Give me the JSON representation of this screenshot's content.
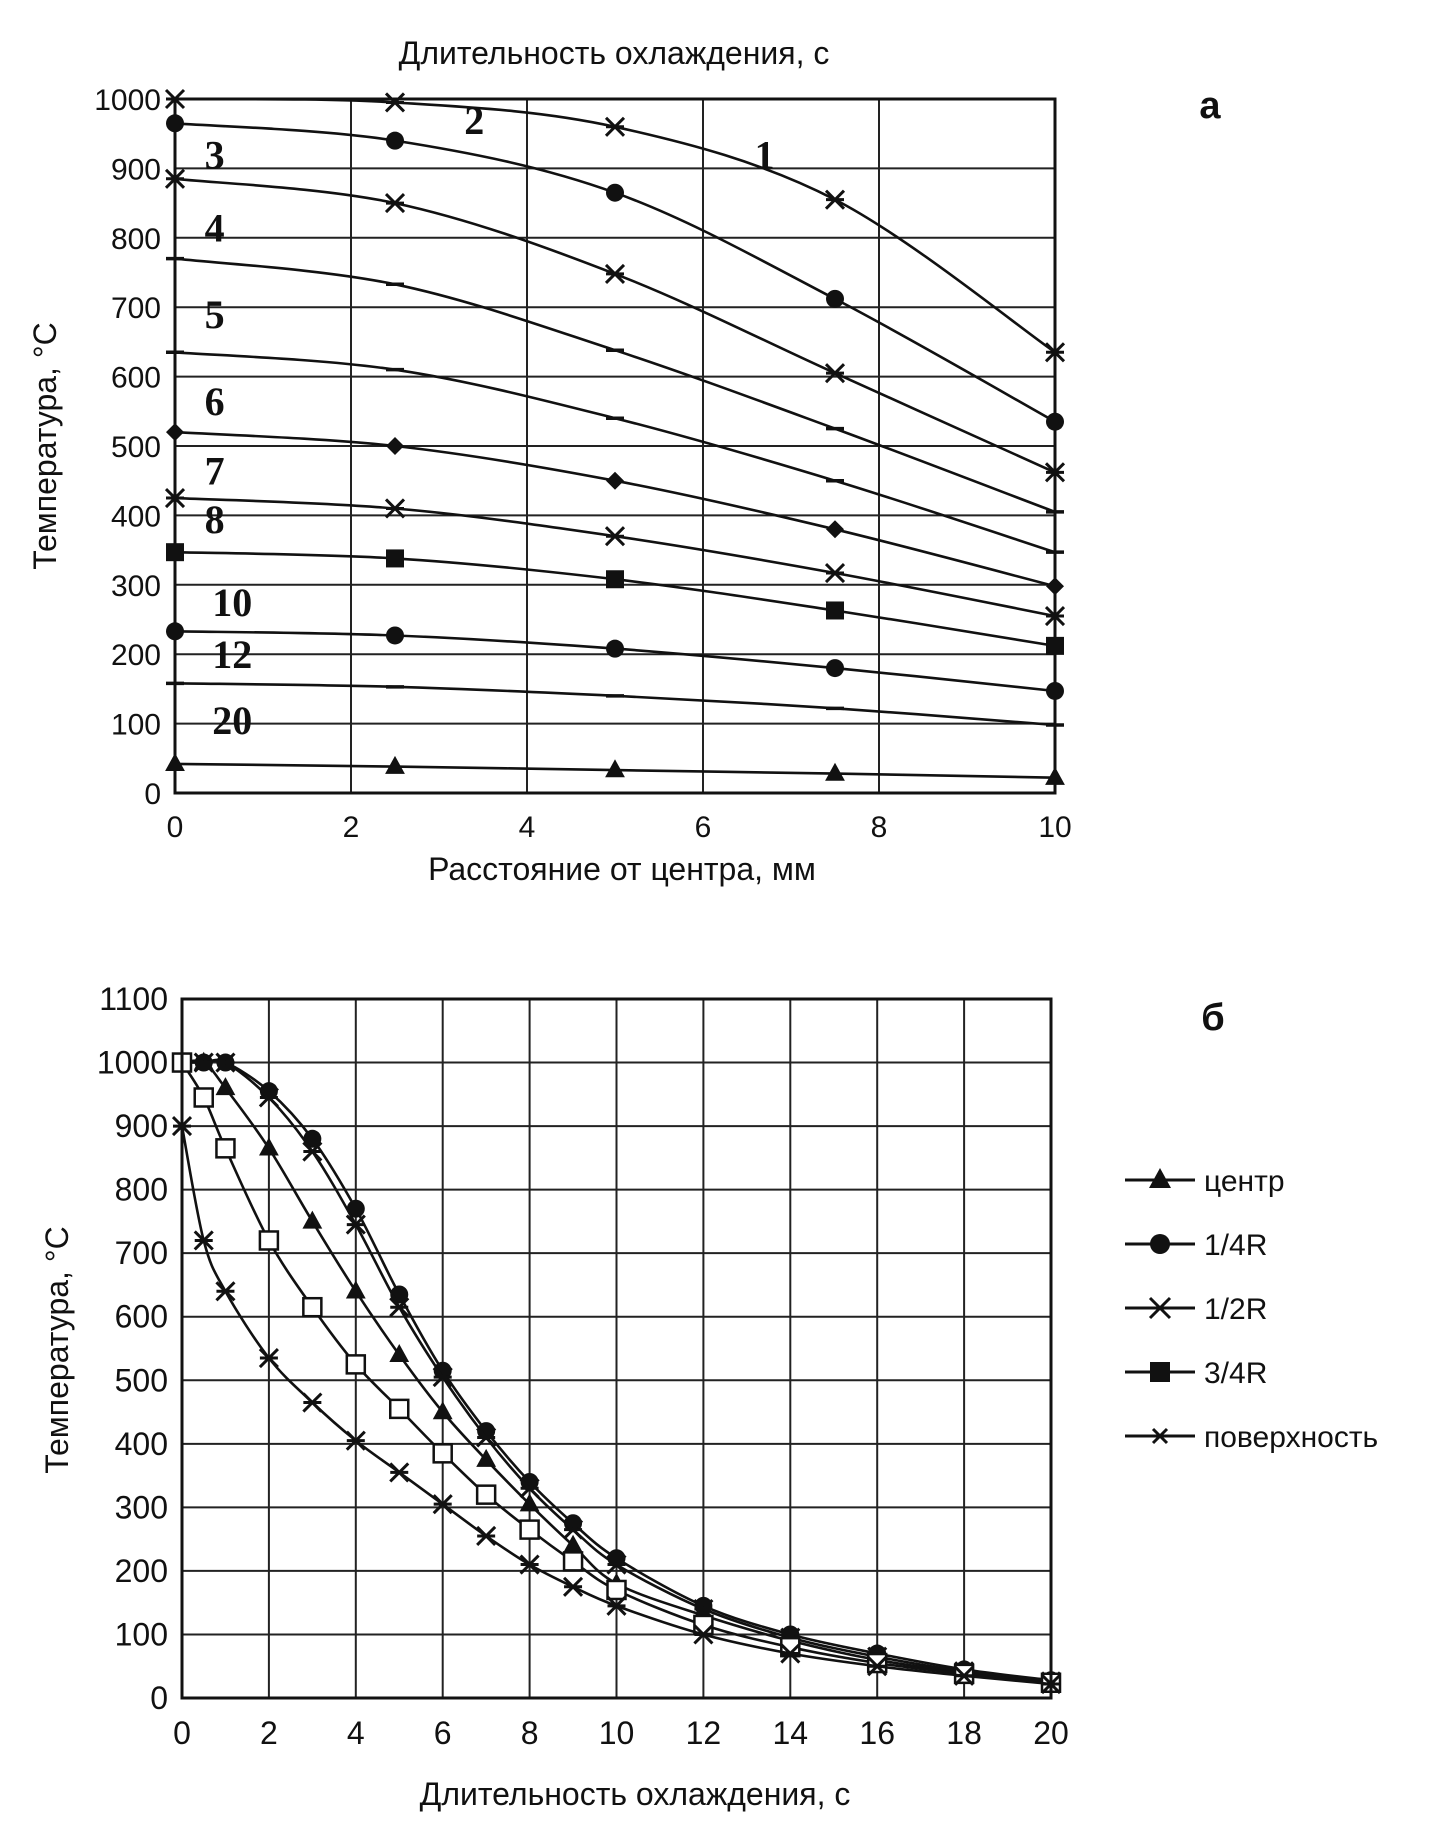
{
  "chart_data": [
    {
      "id": "a",
      "type": "line",
      "panel_label": "а",
      "title": "Длительность охлаждения, с",
      "xlabel": "Расстояние от центра, мм",
      "ylabel": "Температура, °С",
      "xlim": [
        0,
        10
      ],
      "ylim": [
        0,
        1000
      ],
      "xticks": [
        0,
        2,
        4,
        6,
        8,
        10
      ],
      "yticks": [
        0,
        100,
        200,
        300,
        400,
        500,
        600,
        700,
        800,
        900,
        1000
      ],
      "grid": true,
      "x": [
        0,
        2.5,
        5,
        7.5,
        10
      ],
      "series": [
        {
          "name": "1",
          "marker": "x",
          "values": [
            1000,
            995,
            960,
            855,
            635
          ]
        },
        {
          "name": "2",
          "marker": "circle",
          "values": [
            965,
            940,
            865,
            712,
            535
          ]
        },
        {
          "name": "3",
          "marker": "x",
          "values": [
            885,
            850,
            748,
            605,
            462
          ]
        },
        {
          "name": "4",
          "marker": "dash",
          "values": [
            770,
            733,
            638,
            525,
            405
          ]
        },
        {
          "name": "5",
          "marker": "dash",
          "values": [
            635,
            610,
            540,
            450,
            347
          ]
        },
        {
          "name": "6",
          "marker": "diamond",
          "values": [
            520,
            500,
            450,
            380,
            298
          ]
        },
        {
          "name": "7",
          "marker": "x",
          "values": [
            425,
            410,
            370,
            317,
            255
          ]
        },
        {
          "name": "8",
          "marker": "square",
          "values": [
            347,
            338,
            308,
            263,
            212
          ]
        },
        {
          "name": "10",
          "marker": "circle",
          "values": [
            233,
            227,
            208,
            180,
            147
          ]
        },
        {
          "name": "12",
          "marker": "dash",
          "values": [
            158,
            153,
            140,
            122,
            98
          ]
        },
        {
          "name": "20",
          "marker": "triangle",
          "values": [
            42,
            38,
            33,
            28,
            22
          ]
        }
      ],
      "curve_labels": [
        {
          "text": "1",
          "x": 6.7,
          "y": 920
        },
        {
          "text": "2",
          "x": 3.4,
          "y": 970
        },
        {
          "text": "3",
          "x": 0.45,
          "y": 920
        },
        {
          "text": "4",
          "x": 0.45,
          "y": 815
        },
        {
          "text": "5",
          "x": 0.45,
          "y": 690
        },
        {
          "text": "6",
          "x": 0.45,
          "y": 565
        },
        {
          "text": "7",
          "x": 0.45,
          "y": 465
        },
        {
          "text": "8",
          "x": 0.45,
          "y": 395
        },
        {
          "text": "10",
          "x": 0.65,
          "y": 275
        },
        {
          "text": "12",
          "x": 0.65,
          "y": 200
        },
        {
          "text": "20",
          "x": 0.65,
          "y": 105
        }
      ]
    },
    {
      "id": "b",
      "type": "line",
      "panel_label": "б",
      "xlabel": "Длительность охлаждения, с",
      "ylabel": "Температура, °С",
      "xlim": [
        0,
        20
      ],
      "ylim": [
        0,
        1100
      ],
      "xticks": [
        0,
        2,
        4,
        6,
        8,
        10,
        12,
        14,
        16,
        18,
        20
      ],
      "yticks": [
        0,
        100,
        200,
        300,
        400,
        500,
        600,
        700,
        800,
        900,
        1000,
        1100
      ],
      "grid": true,
      "legend_position": "right",
      "series": [
        {
          "name": "центр",
          "marker": "triangle",
          "x": [
            0,
            0.5,
            1,
            2,
            3,
            4,
            5,
            6,
            7,
            8,
            9,
            10,
            12,
            14,
            16,
            18,
            20
          ],
          "values": [
            1000,
            1000,
            960,
            865,
            750,
            640,
            540,
            450,
            375,
            305,
            240,
            180,
            130,
            90,
            60,
            40,
            25
          ]
        },
        {
          "name": "1/4R",
          "marker": "circle",
          "x": [
            0,
            0.5,
            1,
            2,
            3,
            4,
            5,
            6,
            7,
            8,
            9,
            10,
            12,
            14,
            16,
            18,
            20
          ],
          "values": [
            1000,
            1000,
            1000,
            955,
            880,
            770,
            635,
            515,
            420,
            340,
            275,
            220,
            145,
            100,
            70,
            45,
            28
          ]
        },
        {
          "name": "1/2R",
          "marker": "x",
          "x": [
            0,
            0.5,
            1,
            2,
            3,
            4,
            5,
            6,
            7,
            8,
            9,
            10,
            12,
            14,
            16,
            18,
            20
          ],
          "values": [
            1000,
            1000,
            1000,
            945,
            860,
            745,
            615,
            505,
            410,
            330,
            265,
            210,
            140,
            95,
            65,
            42,
            26
          ]
        },
        {
          "name": "3/4R",
          "marker": "square",
          "x": [
            0,
            0.5,
            1,
            2,
            3,
            4,
            5,
            6,
            7,
            8,
            9,
            10,
            12,
            14,
            16,
            18,
            20
          ],
          "values": [
            1000,
            945,
            865,
            720,
            615,
            525,
            455,
            385,
            320,
            265,
            215,
            170,
            115,
            80,
            55,
            38,
            24
          ]
        },
        {
          "name": "поверхность",
          "marker": "x",
          "x": [
            0,
            0.5,
            1,
            2,
            3,
            4,
            5,
            6,
            7,
            8,
            9,
            10,
            12,
            14,
            16,
            18,
            20
          ],
          "values": [
            900,
            720,
            640,
            535,
            465,
            405,
            355,
            305,
            255,
            210,
            175,
            145,
            100,
            70,
            50,
            35,
            22
          ]
        }
      ]
    }
  ]
}
